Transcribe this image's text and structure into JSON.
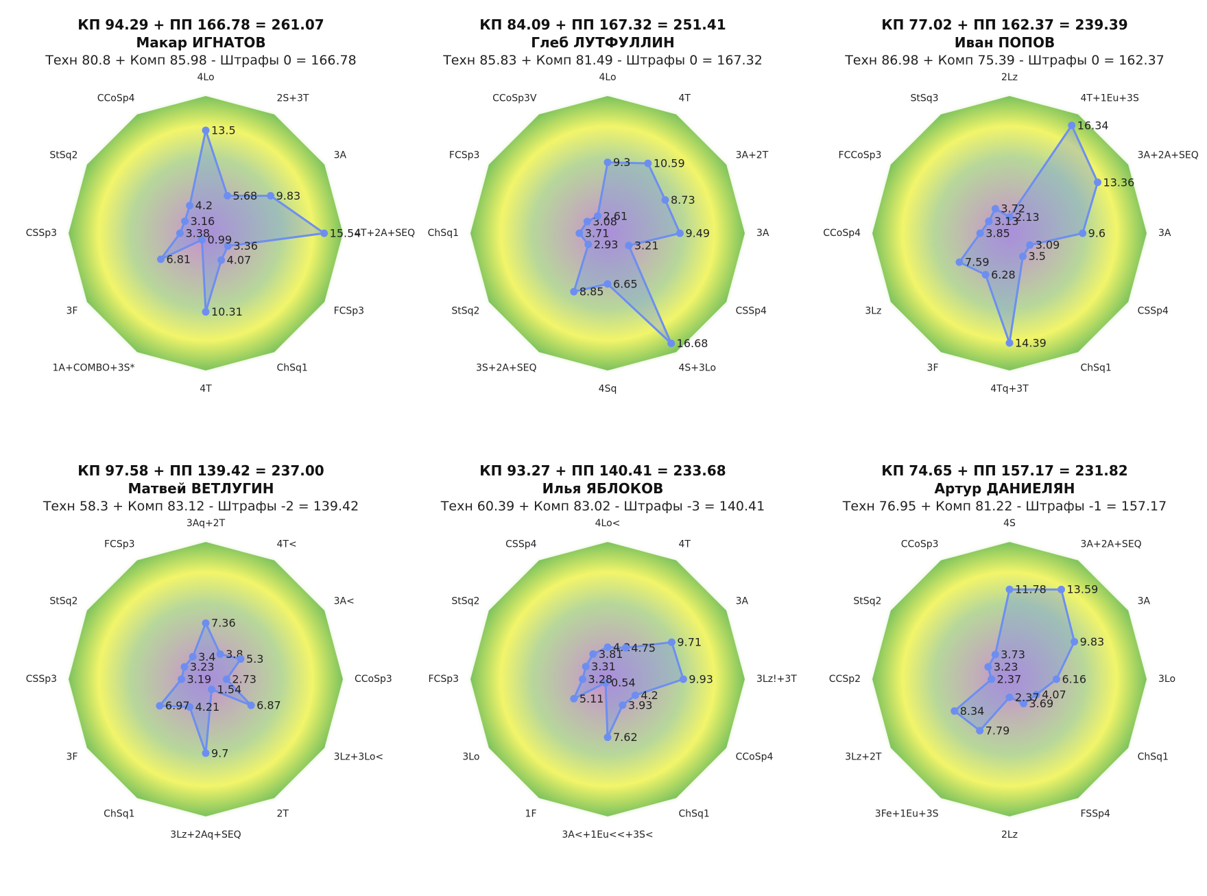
{
  "chart_data": [
    {
      "type": "radar",
      "title": "КП 94.29 + ПП 166.78 = 261.07",
      "skater": "Макар ИГНАТОВ",
      "summary": "Техн 80.8 + Комп 85.98 - Штрафы 0 = 166.78",
      "axis_max": 18,
      "categories": [
        "4Lo",
        "2S+3T",
        "3A",
        "4T+2A+SEQ",
        "FCSp3",
        "ChSq1",
        "4T",
        "1A+COMBO+3S*",
        "3F",
        "CSSp3",
        "StSq2",
        "CCoSp4"
      ],
      "values": [
        13.5,
        5.68,
        9.83,
        15.54,
        3.36,
        4.07,
        10.31,
        0.99,
        6.81,
        3.38,
        3.16,
        4.2
      ],
      "value_labels": [
        "13.5",
        "5.68",
        "9.83",
        "15.54",
        "3.36",
        "4.07",
        "10.31",
        "0.99",
        "6.81",
        "3.38",
        "3.16",
        "4.2"
      ]
    },
    {
      "type": "radar",
      "title": "КП 84.09 + ПП 167.32 = 251.41",
      "skater": "Глеб ЛУТФУЛЛИН",
      "summary": "Техн 85.83 + Комп 81.49 - Штрафы 0 = 167.32",
      "axis_max": 18,
      "categories": [
        "4Lo",
        "4T",
        "3A+2T",
        "3A",
        "CSSp4",
        "4S+3Lo",
        "4Sq",
        "3S+2A+SEQ",
        "StSq2",
        "ChSq1",
        "FCSp3",
        "CCoSp3V"
      ],
      "values": [
        9.3,
        10.59,
        8.73,
        9.49,
        3.21,
        16.68,
        6.65,
        8.85,
        2.93,
        3.71,
        3.08,
        2.61
      ],
      "value_labels": [
        "9.3",
        "10.59",
        "8.73",
        "9.49",
        "3.21",
        "16.68",
        "6.65",
        "8.85",
        "2.93",
        "3.71",
        "3.08",
        "2.61"
      ]
    },
    {
      "type": "radar",
      "title": "КП 77.02 + ПП 162.37 = 239.39",
      "skater": "Иван ПОПОВ",
      "summary": "Техн 86.98 + Комп 75.39 - Штрафы 0 = 162.37",
      "axis_max": 18,
      "categories": [
        "2Lz",
        "4T+1Eu+3S",
        "3A+2A+SEQ",
        "3A",
        "CSSp4",
        "ChSq1",
        "4Tq+3T",
        "3F",
        "3Lz",
        "CCoSp4",
        "FCCoSp3",
        "StSq3"
      ],
      "values": [
        2.13,
        16.34,
        13.36,
        9.6,
        3.09,
        3.5,
        14.39,
        6.28,
        7.59,
        3.85,
        3.13,
        3.72
      ],
      "value_labels": [
        "2.13",
        "16.34",
        "13.36",
        "9.6",
        "3.09",
        "3.5",
        "14.39",
        "6.28",
        "7.59",
        "3.85",
        "3.13",
        "3.72"
      ]
    },
    {
      "type": "radar",
      "title": "КП 97.58 + ПП 139.42 = 237.00",
      "skater": "Матвей ВЕТЛУГИН",
      "summary": "Техн 58.3 + Комп 83.12 - Штрафы -2 = 139.42",
      "axis_max": 18,
      "categories": [
        "3Aq+2T",
        "4T<",
        "3A<",
        "CCoSp3",
        "3Lz+3Lo<",
        "2T",
        "3Lz+2Aq+SEQ",
        "ChSq1",
        "3F",
        "CSSp3",
        "StSq2",
        "FCSp3"
      ],
      "values": [
        7.36,
        3.8,
        5.3,
        2.73,
        6.87,
        1.54,
        9.7,
        4.21,
        6.97,
        3.19,
        3.23,
        3.4
      ],
      "value_labels": [
        "7.36",
        "3.8",
        "5.3",
        "2.73",
        "6.87",
        "1.54",
        "9.7",
        "4.21",
        "6.97",
        "3.19",
        "3.23",
        "3.4"
      ]
    },
    {
      "type": "radar",
      "title": "КП 93.27 + ПП 140.41 = 233.68",
      "skater": "Илья ЯБЛОКОВ",
      "summary": "Техн 60.39 + Комп 83.02 - Штрафы -3 = 140.41",
      "axis_max": 18,
      "categories": [
        "4Lo<",
        "4T",
        "3A",
        "3Lz!+3T",
        "CCoSp4",
        "ChSq1",
        "3A<+1Eu<<+3S<",
        "1F",
        "3Lo",
        "FCSp3",
        "StSq2",
        "CSSp4"
      ],
      "values": [
        4.2,
        4.75,
        9.71,
        9.93,
        4.2,
        3.93,
        7.62,
        0.54,
        5.11,
        3.28,
        3.31,
        3.81
      ],
      "value_labels": [
        "4.2",
        "4.75",
        "9.71",
        "9.93",
        "4.2",
        "3.93",
        "7.62",
        "0.54",
        "5.11",
        "3.28",
        "3.31",
        "3.81"
      ]
    },
    {
      "type": "radar",
      "title": "КП 74.65 + ПП 157.17 = 231.82",
      "skater": "Артур ДАНИЕЛЯН",
      "summary": "Техн 76.95 + Комп 81.22 - Штрафы -1 = 157.17",
      "axis_max": 18,
      "categories": [
        "4S",
        "3A+2A+SEQ",
        "3A",
        "3Lo",
        "ChSq1",
        "FSSp4",
        "2Lz",
        "3Fe+1Eu+3S",
        "3Lz+2T",
        "CCSp2",
        "StSq2",
        "CCoSp3"
      ],
      "values": [
        11.78,
        13.59,
        9.83,
        6.16,
        4.07,
        3.69,
        2.37,
        7.79,
        8.34,
        2.37,
        3.23,
        3.73
      ],
      "value_labels": [
        "11.78",
        "13.59",
        "9.83",
        "6.16",
        "4.07",
        "3.69",
        "2.37",
        "7.79",
        "8.34",
        "2.37",
        "3.23",
        "3.73"
      ]
    }
  ],
  "colors": {
    "series_line": "#6d8ef0",
    "series_fill": "#6d8ef0",
    "bg_center": "#c98fd0",
    "bg_mid": "#f2f56a",
    "bg_outer": "#7cc25e"
  }
}
